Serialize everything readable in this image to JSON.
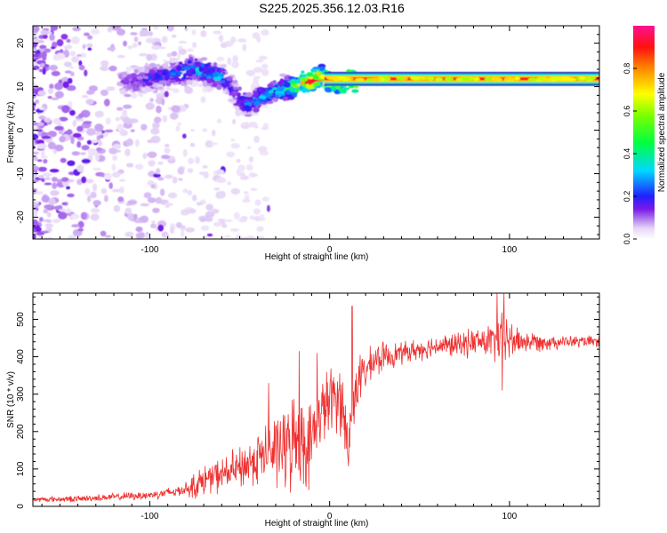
{
  "title": "S225.2025.356.12.03.R16",
  "chart_data": [
    {
      "type": "heatmap",
      "name": "spectrogram",
      "xlabel": "Height of straight line (km)",
      "ylabel": "Frequency (Hz)",
      "xlim": [
        -165,
        150
      ],
      "ylim": [
        -25,
        24
      ],
      "x_ticks": [
        -100,
        0,
        100
      ],
      "y_ticks": [
        -20,
        -10,
        0,
        10,
        20
      ],
      "colorbar": {
        "label": "Normalized spectral amplitude",
        "range": [
          0,
          1
        ],
        "ticks": [
          0,
          0.2,
          0.4,
          0.6,
          0.8
        ],
        "tick_labels": [
          "0.0",
          "0.2",
          "0.4",
          "0.6",
          "0.8"
        ]
      },
      "ridge": {
        "description": "dominant frequency track",
        "x": [
          -110,
          -100,
          -90,
          -82,
          -75,
          -68,
          -60,
          -55,
          -50,
          -45,
          -40,
          -35,
          -30,
          -25,
          -20,
          -15,
          -10,
          -5,
          0,
          5,
          10,
          15,
          20,
          40,
          60,
          80,
          100,
          120,
          150
        ],
        "freq": [
          11,
          12,
          12.5,
          13.5,
          14,
          13,
          12,
          10,
          7,
          6,
          7,
          8.5,
          9,
          9.5,
          10,
          11,
          11.5,
          12,
          11,
          10,
          11.5,
          11.5,
          11.5,
          11.8,
          11.8,
          11.8,
          11.8,
          11.8,
          11.8
        ],
        "amplitude": [
          0.15,
          0.2,
          0.2,
          0.3,
          0.35,
          0.3,
          0.3,
          0.2,
          0.25,
          0.25,
          0.3,
          0.3,
          0.35,
          0.4,
          0.55,
          0.8,
          0.9,
          0.85,
          0.6,
          0.5,
          0.9,
          0.95,
          0.95,
          0.95,
          0.95,
          0.95,
          0.95,
          0.95,
          0.95
        ]
      }
    },
    {
      "type": "line",
      "name": "snr",
      "xlabel": "Height of straight line (km)",
      "ylabel": "SNR (10 * v/v)",
      "xlim": [
        -165,
        150
      ],
      "ylim": [
        0,
        570
      ],
      "x_ticks": [
        -100,
        0,
        100
      ],
      "y_ticks": [
        0,
        100,
        200,
        300,
        400,
        500
      ],
      "color": "#ee3030",
      "trend": {
        "x": [
          -165,
          -140,
          -120,
          -100,
          -85,
          -75,
          -70,
          -60,
          -50,
          -40,
          -30,
          -22,
          -18,
          -12,
          -5,
          0,
          5,
          8,
          10,
          13,
          16,
          20,
          25,
          30,
          40,
          50,
          60,
          70,
          80,
          90,
          95,
          100,
          110,
          120,
          130,
          150
        ],
        "snr": [
          18,
          20,
          25,
          30,
          40,
          55,
          70,
          85,
          100,
          130,
          150,
          160,
          200,
          150,
          250,
          280,
          300,
          250,
          140,
          280,
          340,
          360,
          390,
          400,
          410,
          420,
          430,
          430,
          440,
          440,
          450,
          445,
          440,
          440,
          440,
          440
        ]
      },
      "noise": {
        "x": [
          -165,
          -120,
          -100,
          -80,
          -75,
          -60,
          -40,
          -30,
          -20,
          -10,
          0,
          10,
          20,
          40,
          60,
          80,
          90,
          95,
          100,
          105,
          110,
          130,
          150
        ],
        "amp": [
          8,
          12,
          15,
          20,
          45,
          55,
          85,
          120,
          150,
          130,
          110,
          120,
          60,
          35,
          35,
          45,
          60,
          90,
          70,
          45,
          35,
          20,
          18
        ]
      },
      "spikes": [
        {
          "x": -34,
          "snr": 330
        },
        {
          "x": -17,
          "snr": 415
        },
        {
          "x": -7,
          "snr": 410
        },
        {
          "x": 12.5,
          "snr": 535
        },
        {
          "x": 93,
          "snr": 570
        },
        {
          "x": 97,
          "snr": 570
        },
        {
          "x": 96,
          "snr": 310
        }
      ]
    }
  ]
}
